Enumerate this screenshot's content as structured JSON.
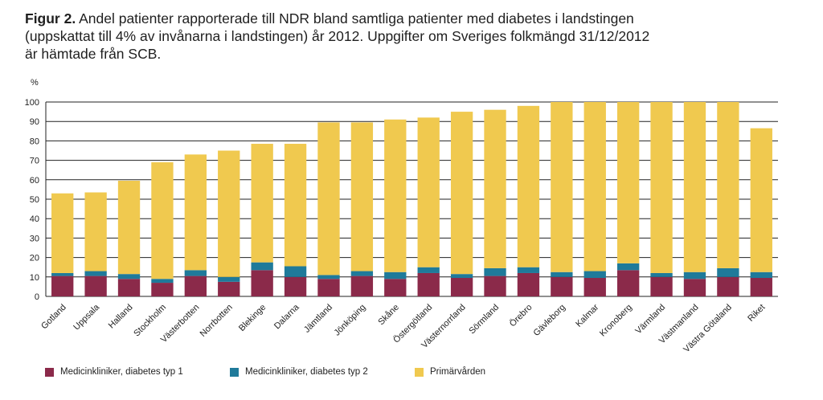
{
  "title_prefix": "Figur 2.",
  "title_text": " Andel patienter rapporterade till NDR bland samtliga patienter med diabetes i landstingen\n(uppskattat till 4% av invånarna i landstingen) år 2012. Uppgifter om Sveriges folkmängd 31/12/2012\när hämtade från SCB.",
  "chart_data": {
    "type": "bar",
    "stacked": true,
    "ylabel": "%",
    "ylim": [
      0,
      100
    ],
    "yticks": [
      0,
      10,
      20,
      30,
      40,
      50,
      60,
      70,
      80,
      90,
      100
    ],
    "grid": true,
    "legend_position": "bottom",
    "categories": [
      "Gotland",
      "Uppsala",
      "Halland",
      "Stockholm",
      "Västerbotten",
      "Norrbotten",
      "Blekinge",
      "Dalarna",
      "Jämtland",
      "Jönköping",
      "Skåne",
      "Östergötland",
      "Västernorrland",
      "Sörmland",
      "Örebro",
      "Gävleborg",
      "Kalmar",
      "Kronoberg",
      "Värmland",
      "Västmanland",
      "Västra Götaland",
      "Riket"
    ],
    "series": [
      {
        "name": "Medicinkliniker, diabetes typ 1",
        "color": "#8b2a4a",
        "values": [
          10.5,
          10.5,
          9,
          7,
          10.5,
          7.5,
          13.5,
          10,
          9,
          10.5,
          9,
          12,
          9.5,
          10.5,
          12,
          10,
          9.5,
          13.5,
          10,
          9,
          10,
          9.5
        ]
      },
      {
        "name": "Medicinkliniker, diabetes typ 2",
        "color": "#1f7a9a",
        "values": [
          1.5,
          2.5,
          2.5,
          2,
          3,
          2.5,
          4,
          5.5,
          2,
          2.5,
          3.5,
          3,
          2,
          4,
          3,
          2.5,
          3.5,
          3.5,
          2,
          3.5,
          4.5,
          3
        ]
      },
      {
        "name": "Primärvården",
        "color": "#f0c94f",
        "values": [
          41,
          40.5,
          48,
          60,
          59.5,
          65,
          61,
          63,
          78.5,
          76.5,
          78.5,
          77,
          83.5,
          81.5,
          83,
          87.5,
          87,
          83,
          88,
          87.5,
          85.5,
          74
        ]
      }
    ]
  }
}
